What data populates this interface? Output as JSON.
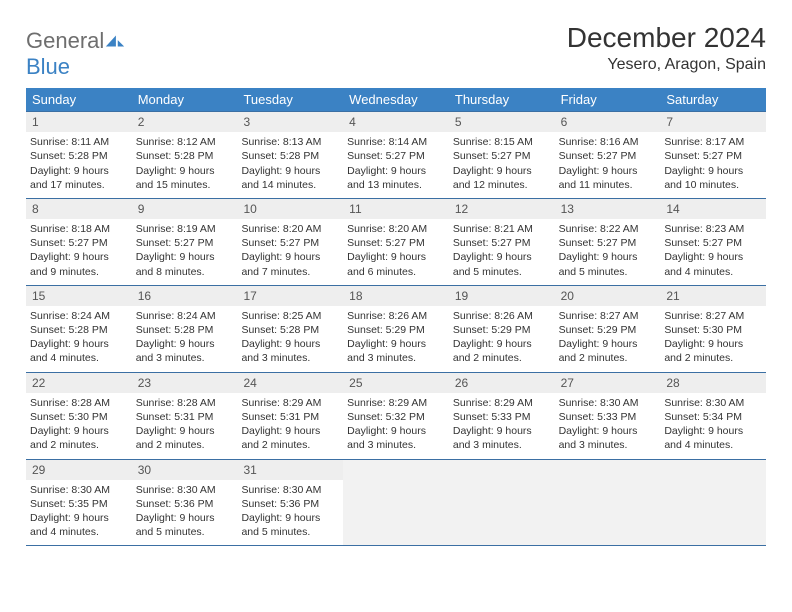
{
  "brand": {
    "part1": "General",
    "part2": "Blue"
  },
  "title": "December 2024",
  "location": "Yesero, Aragon, Spain",
  "colors": {
    "headerBg": "#3b82c4",
    "headerText": "#ffffff",
    "rowBorder": "#3b6fa3",
    "dayNumBg": "#eeeeee",
    "blankBg": "#f2f2f2"
  },
  "dayNames": [
    "Sunday",
    "Monday",
    "Tuesday",
    "Wednesday",
    "Thursday",
    "Friday",
    "Saturday"
  ],
  "weeks": [
    [
      {
        "n": "1",
        "sr": "Sunrise: 8:11 AM",
        "ss": "Sunset: 5:28 PM",
        "d1": "Daylight: 9 hours",
        "d2": "and 17 minutes."
      },
      {
        "n": "2",
        "sr": "Sunrise: 8:12 AM",
        "ss": "Sunset: 5:28 PM",
        "d1": "Daylight: 9 hours",
        "d2": "and 15 minutes."
      },
      {
        "n": "3",
        "sr": "Sunrise: 8:13 AM",
        "ss": "Sunset: 5:28 PM",
        "d1": "Daylight: 9 hours",
        "d2": "and 14 minutes."
      },
      {
        "n": "4",
        "sr": "Sunrise: 8:14 AM",
        "ss": "Sunset: 5:27 PM",
        "d1": "Daylight: 9 hours",
        "d2": "and 13 minutes."
      },
      {
        "n": "5",
        "sr": "Sunrise: 8:15 AM",
        "ss": "Sunset: 5:27 PM",
        "d1": "Daylight: 9 hours",
        "d2": "and 12 minutes."
      },
      {
        "n": "6",
        "sr": "Sunrise: 8:16 AM",
        "ss": "Sunset: 5:27 PM",
        "d1": "Daylight: 9 hours",
        "d2": "and 11 minutes."
      },
      {
        "n": "7",
        "sr": "Sunrise: 8:17 AM",
        "ss": "Sunset: 5:27 PM",
        "d1": "Daylight: 9 hours",
        "d2": "and 10 minutes."
      }
    ],
    [
      {
        "n": "8",
        "sr": "Sunrise: 8:18 AM",
        "ss": "Sunset: 5:27 PM",
        "d1": "Daylight: 9 hours",
        "d2": "and 9 minutes."
      },
      {
        "n": "9",
        "sr": "Sunrise: 8:19 AM",
        "ss": "Sunset: 5:27 PM",
        "d1": "Daylight: 9 hours",
        "d2": "and 8 minutes."
      },
      {
        "n": "10",
        "sr": "Sunrise: 8:20 AM",
        "ss": "Sunset: 5:27 PM",
        "d1": "Daylight: 9 hours",
        "d2": "and 7 minutes."
      },
      {
        "n": "11",
        "sr": "Sunrise: 8:20 AM",
        "ss": "Sunset: 5:27 PM",
        "d1": "Daylight: 9 hours",
        "d2": "and 6 minutes."
      },
      {
        "n": "12",
        "sr": "Sunrise: 8:21 AM",
        "ss": "Sunset: 5:27 PM",
        "d1": "Daylight: 9 hours",
        "d2": "and 5 minutes."
      },
      {
        "n": "13",
        "sr": "Sunrise: 8:22 AM",
        "ss": "Sunset: 5:27 PM",
        "d1": "Daylight: 9 hours",
        "d2": "and 5 minutes."
      },
      {
        "n": "14",
        "sr": "Sunrise: 8:23 AM",
        "ss": "Sunset: 5:27 PM",
        "d1": "Daylight: 9 hours",
        "d2": "and 4 minutes."
      }
    ],
    [
      {
        "n": "15",
        "sr": "Sunrise: 8:24 AM",
        "ss": "Sunset: 5:28 PM",
        "d1": "Daylight: 9 hours",
        "d2": "and 4 minutes."
      },
      {
        "n": "16",
        "sr": "Sunrise: 8:24 AM",
        "ss": "Sunset: 5:28 PM",
        "d1": "Daylight: 9 hours",
        "d2": "and 3 minutes."
      },
      {
        "n": "17",
        "sr": "Sunrise: 8:25 AM",
        "ss": "Sunset: 5:28 PM",
        "d1": "Daylight: 9 hours",
        "d2": "and 3 minutes."
      },
      {
        "n": "18",
        "sr": "Sunrise: 8:26 AM",
        "ss": "Sunset: 5:29 PM",
        "d1": "Daylight: 9 hours",
        "d2": "and 3 minutes."
      },
      {
        "n": "19",
        "sr": "Sunrise: 8:26 AM",
        "ss": "Sunset: 5:29 PM",
        "d1": "Daylight: 9 hours",
        "d2": "and 2 minutes."
      },
      {
        "n": "20",
        "sr": "Sunrise: 8:27 AM",
        "ss": "Sunset: 5:29 PM",
        "d1": "Daylight: 9 hours",
        "d2": "and 2 minutes."
      },
      {
        "n": "21",
        "sr": "Sunrise: 8:27 AM",
        "ss": "Sunset: 5:30 PM",
        "d1": "Daylight: 9 hours",
        "d2": "and 2 minutes."
      }
    ],
    [
      {
        "n": "22",
        "sr": "Sunrise: 8:28 AM",
        "ss": "Sunset: 5:30 PM",
        "d1": "Daylight: 9 hours",
        "d2": "and 2 minutes."
      },
      {
        "n": "23",
        "sr": "Sunrise: 8:28 AM",
        "ss": "Sunset: 5:31 PM",
        "d1": "Daylight: 9 hours",
        "d2": "and 2 minutes."
      },
      {
        "n": "24",
        "sr": "Sunrise: 8:29 AM",
        "ss": "Sunset: 5:31 PM",
        "d1": "Daylight: 9 hours",
        "d2": "and 2 minutes."
      },
      {
        "n": "25",
        "sr": "Sunrise: 8:29 AM",
        "ss": "Sunset: 5:32 PM",
        "d1": "Daylight: 9 hours",
        "d2": "and 3 minutes."
      },
      {
        "n": "26",
        "sr": "Sunrise: 8:29 AM",
        "ss": "Sunset: 5:33 PM",
        "d1": "Daylight: 9 hours",
        "d2": "and 3 minutes."
      },
      {
        "n": "27",
        "sr": "Sunrise: 8:30 AM",
        "ss": "Sunset: 5:33 PM",
        "d1": "Daylight: 9 hours",
        "d2": "and 3 minutes."
      },
      {
        "n": "28",
        "sr": "Sunrise: 8:30 AM",
        "ss": "Sunset: 5:34 PM",
        "d1": "Daylight: 9 hours",
        "d2": "and 4 minutes."
      }
    ],
    [
      {
        "n": "29",
        "sr": "Sunrise: 8:30 AM",
        "ss": "Sunset: 5:35 PM",
        "d1": "Daylight: 9 hours",
        "d2": "and 4 minutes."
      },
      {
        "n": "30",
        "sr": "Sunrise: 8:30 AM",
        "ss": "Sunset: 5:36 PM",
        "d1": "Daylight: 9 hours",
        "d2": "and 5 minutes."
      },
      {
        "n": "31",
        "sr": "Sunrise: 8:30 AM",
        "ss": "Sunset: 5:36 PM",
        "d1": "Daylight: 9 hours",
        "d2": "and 5 minutes."
      },
      null,
      null,
      null,
      null
    ]
  ]
}
